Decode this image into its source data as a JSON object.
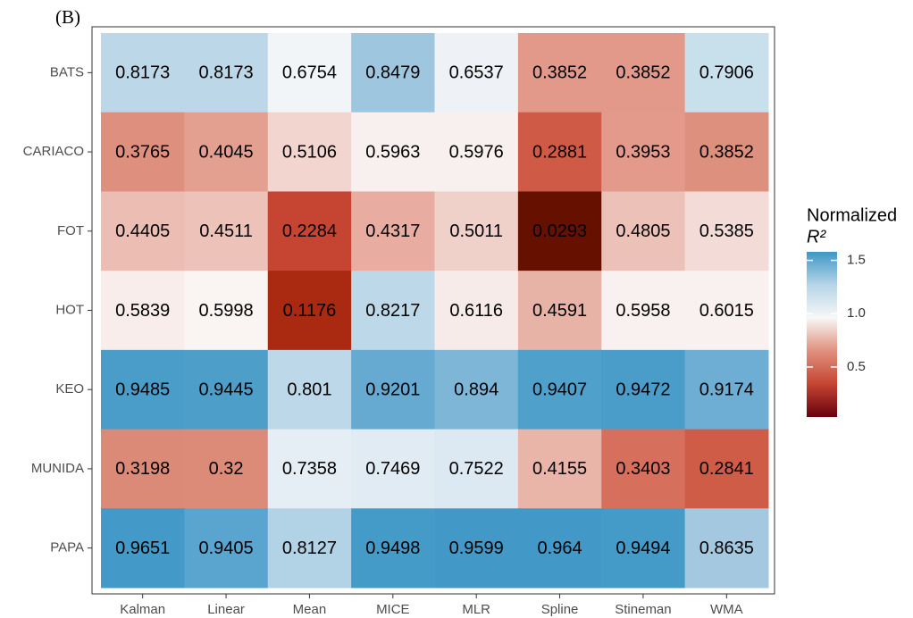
{
  "chart_data": {
    "type": "heatmap",
    "title": "(B)",
    "x_categories": [
      "Kalman",
      "Linear",
      "Mean",
      "MICE",
      "MLR",
      "Spline",
      "Stineman",
      "WMA"
    ],
    "y_categories": [
      "BATS",
      "CARIACO",
      "FOT",
      "HOT",
      "KEO",
      "MUNIDA",
      "PAPA"
    ],
    "values": [
      [
        0.8173,
        0.8173,
        0.6754,
        0.8479,
        0.6537,
        0.3852,
        0.3852,
        0.7906
      ],
      [
        0.3765,
        0.4045,
        0.5106,
        0.5963,
        0.5976,
        0.2881,
        0.3953,
        0.3852
      ],
      [
        0.4405,
        0.4511,
        0.2284,
        0.4317,
        0.5011,
        0.0293,
        0.4805,
        0.5385
      ],
      [
        0.5839,
        0.5998,
        0.1176,
        0.8217,
        0.6116,
        0.4591,
        0.5958,
        0.6015
      ],
      [
        0.9485,
        0.9445,
        0.801,
        0.9201,
        0.894,
        0.9407,
        0.9472,
        0.9174
      ],
      [
        0.3198,
        0.32,
        0.7358,
        0.7469,
        0.7522,
        0.4155,
        0.3403,
        0.2841
      ],
      [
        0.9651,
        0.9405,
        0.8127,
        0.9498,
        0.9599,
        0.964,
        0.9494,
        0.8635
      ]
    ],
    "colors": [
      [
        "#bcd7e8",
        "#bcd7e8",
        "#f2f5f8",
        "#9ec6df",
        "#eef2f6",
        "#e3998a",
        "#e3998a",
        "#c8dfec"
      ],
      [
        "#df8f7e",
        "#e39f90",
        "#f2d5cf",
        "#f8f0ef",
        "#f8f0ef",
        "#cf5a45",
        "#e39a8b",
        "#de907f"
      ],
      [
        "#ecbdb3",
        "#edc2b8",
        "#c54532",
        "#e8ada0",
        "#f0d1ca",
        "#661000",
        "#ecc2b8",
        "#f3dcd7"
      ],
      [
        "#f8edeb",
        "#faf4f3",
        "#a92a10",
        "#bdd8e9",
        "#f7ebe9",
        "#e8b3a7",
        "#f9f1ef",
        "#f9f1f0"
      ],
      [
        "#4b9dc9",
        "#4d9ec9",
        "#bdd8e9",
        "#66a9d1",
        "#7eb6d8",
        "#4fa0cb",
        "#4b9dc9",
        "#6eaed4"
      ],
      [
        "#dc8a78",
        "#dc8b79",
        "#e5eef5",
        "#e0ebf3",
        "#dce9f2",
        "#e9b5a9",
        "#d6705c",
        "#cf5c47"
      ],
      [
        "#439ac8",
        "#5aa5cf",
        "#b2d2e6",
        "#459bc8",
        "#4299c7",
        "#4299c7",
        "#459bc8",
        "#a3c8e0"
      ]
    ],
    "legend_title": "Normalized",
    "legend_subtitle": "R²",
    "colorbar": {
      "lim": [
        0.03,
        1.58
      ],
      "ticks": [
        0.5,
        {
          "value": 1,
          "label": "1.0"
        },
        1.5
      ],
      "gradient": [
        "#3f97c6",
        "#b6d5e8",
        "#f7f7f7",
        "#e0907e",
        "#c54532",
        "#67000d"
      ]
    }
  }
}
